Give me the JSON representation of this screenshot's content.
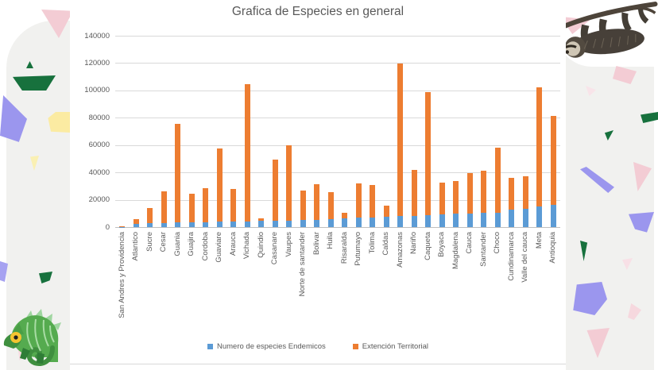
{
  "decorations": {
    "top_right": "sloth-hanging-from-branch-illustration",
    "bottom_left": "green-chameleon-illustration",
    "panel_color": "#f1f1ef",
    "confetti_colors": {
      "pink": "#f3ccd4",
      "purple": "#9b96ee",
      "green": "#17713d",
      "yellow": "#fbeba2"
    }
  },
  "chart_data": {
    "type": "bar",
    "stacked": true,
    "title": "Grafica de Especies en general",
    "xlabel": "",
    "ylabel": "",
    "ylim": [
      0,
      140000
    ],
    "ytick_step": 20000,
    "yticks": [
      "0",
      "20000",
      "40000",
      "60000",
      "80000",
      "100000",
      "120000",
      "140000"
    ],
    "grid": true,
    "legend_position": "bottom",
    "text_color": "#595959",
    "gridline_color": "#d9d9d9",
    "categories": [
      "San Andres y Providencia",
      "Atlantico",
      "Sucre",
      "Cesar",
      "Guania",
      "Guajira",
      "Cordoba",
      "Guaviare",
      "Arauca",
      "Vichada",
      "Quindio",
      "Casanare",
      "Vaupes",
      "Norte de santander",
      "Bolivar",
      "Huila",
      "Risaralda",
      "Putumayo",
      "Tolima",
      "Caldas",
      "Amazonas",
      "Nariño",
      "Caqueta",
      "Boyaca",
      "Magdalena",
      "Cauca",
      "Santander",
      "Choco",
      "Cundinamarca",
      "Valle del cauca",
      "Meta",
      "Antioquia"
    ],
    "series": [
      {
        "name": "Numero de especies Endemicos",
        "color": "#5B9BD5",
        "values": [
          100,
          2300,
          2700,
          3000,
          3500,
          3500,
          3700,
          3900,
          4100,
          4300,
          4500,
          4700,
          4900,
          5300,
          5500,
          5700,
          6400,
          6800,
          7200,
          7600,
          8200,
          8400,
          8800,
          9200,
          9600,
          10000,
          10200,
          10500,
          12500,
          13300,
          15200,
          16300
        ]
      },
      {
        "name": "Extención Territorial",
        "color": "#ED7D31",
        "values": [
          700,
          3500,
          11000,
          22900,
          72200,
          20800,
          25000,
          53400,
          23800,
          100200,
          1800,
          44600,
          54800,
          21700,
          26000,
          19900,
          4100,
          24900,
          23600,
          7900,
          111500,
          33600,
          90100,
          23400,
          24000,
          29600,
          31200,
          47500,
          23400,
          23600,
          87000,
          65100
        ]
      }
    ]
  }
}
